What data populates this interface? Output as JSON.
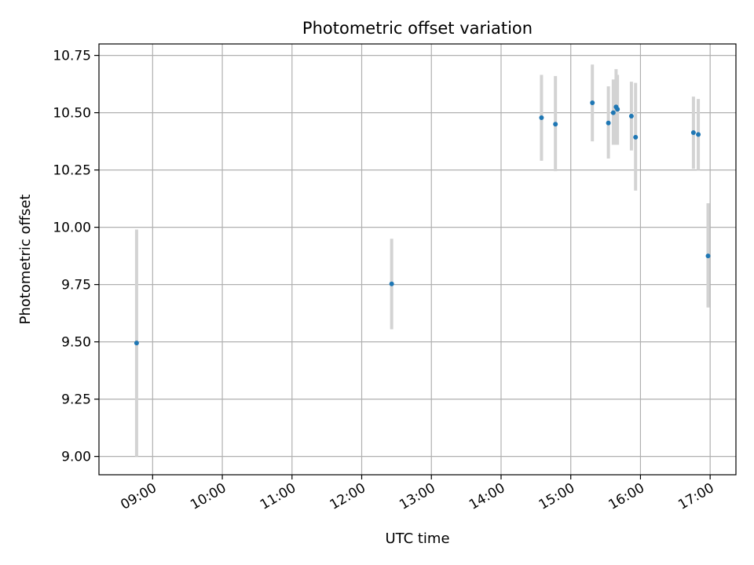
{
  "chart_data": {
    "type": "scatter",
    "title": "Photometric offset variation",
    "xlabel": "UTC time",
    "ylabel": "Photometric offset",
    "x_unit": "hours UTC",
    "xlim": [
      8.23,
      17.37
    ],
    "ylim": [
      8.92,
      10.8
    ],
    "grid": true,
    "x_ticks": [
      {
        "value": 9,
        "label": "09:00"
      },
      {
        "value": 10,
        "label": "10:00"
      },
      {
        "value": 11,
        "label": "11:00"
      },
      {
        "value": 12,
        "label": "12:00"
      },
      {
        "value": 13,
        "label": "13:00"
      },
      {
        "value": 14,
        "label": "14:00"
      },
      {
        "value": 15,
        "label": "15:00"
      },
      {
        "value": 16,
        "label": "16:00"
      },
      {
        "value": 17,
        "label": "17:00"
      }
    ],
    "y_ticks": [
      {
        "value": 9.0,
        "label": "9.00"
      },
      {
        "value": 9.25,
        "label": "9.25"
      },
      {
        "value": 9.5,
        "label": "9.50"
      },
      {
        "value": 9.75,
        "label": "9.75"
      },
      {
        "value": 10.0,
        "label": "10.00"
      },
      {
        "value": 10.25,
        "label": "10.25"
      },
      {
        "value": 10.5,
        "label": "10.50"
      },
      {
        "value": 10.75,
        "label": "10.75"
      }
    ],
    "series": [
      {
        "name": "Photometric offset",
        "marker_color": "#1f77b4",
        "errorbar_color": "#d3d3d3",
        "points": [
          {
            "x": 8.77,
            "y": 9.495,
            "ylow": 9.0,
            "yhigh": 9.99
          },
          {
            "x": 12.43,
            "y": 9.753,
            "ylow": 9.555,
            "yhigh": 9.95
          },
          {
            "x": 14.58,
            "y": 10.478,
            "ylow": 10.29,
            "yhigh": 10.665
          },
          {
            "x": 14.78,
            "y": 10.45,
            "ylow": 10.245,
            "yhigh": 10.66
          },
          {
            "x": 15.31,
            "y": 10.543,
            "ylow": 10.375,
            "yhigh": 10.71
          },
          {
            "x": 15.54,
            "y": 10.455,
            "ylow": 10.3,
            "yhigh": 10.615
          },
          {
            "x": 15.61,
            "y": 10.5,
            "ylow": 10.36,
            "yhigh": 10.645
          },
          {
            "x": 15.65,
            "y": 10.525,
            "ylow": 10.36,
            "yhigh": 10.69
          },
          {
            "x": 15.67,
            "y": 10.515,
            "ylow": 10.36,
            "yhigh": 10.665
          },
          {
            "x": 15.87,
            "y": 10.485,
            "ylow": 10.335,
            "yhigh": 10.635
          },
          {
            "x": 15.93,
            "y": 10.393,
            "ylow": 10.16,
            "yhigh": 10.63
          },
          {
            "x": 16.76,
            "y": 10.413,
            "ylow": 10.255,
            "yhigh": 10.57
          },
          {
            "x": 16.83,
            "y": 10.405,
            "ylow": 10.25,
            "yhigh": 10.56
          },
          {
            "x": 16.97,
            "y": 9.875,
            "ylow": 9.65,
            "yhigh": 10.105
          }
        ]
      }
    ],
    "colors": {
      "grid": "#b0b0b0",
      "axes": "#000000",
      "background": "#ffffff"
    }
  }
}
